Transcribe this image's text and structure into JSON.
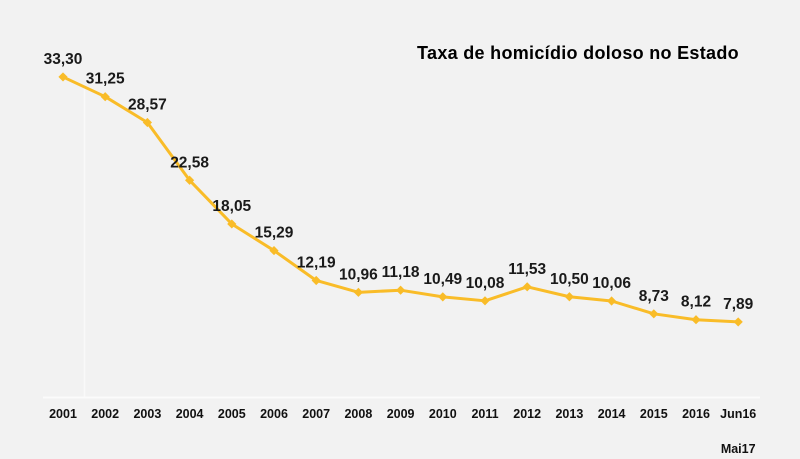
{
  "chart_data": {
    "type": "line",
    "title": "Taxa de homicídio doloso no Estado",
    "categories": [
      "2001",
      "2002",
      "2003",
      "2004",
      "2005",
      "2006",
      "2007",
      "2008",
      "2009",
      "2010",
      "2011",
      "2012",
      "2013",
      "2014",
      "2015",
      "2016",
      "Jun16"
    ],
    "last_category_line2": "Mai17",
    "values": [
      33.3,
      31.25,
      28.57,
      22.58,
      18.05,
      15.29,
      12.19,
      10.96,
      11.18,
      10.49,
      10.08,
      11.53,
      10.5,
      10.06,
      8.73,
      8.12,
      7.89
    ],
    "point_labels": [
      "33,30",
      "31,25",
      "28,57",
      "22,58",
      "18,05",
      "15,29",
      "12,19",
      "10,96",
      "11,18",
      "10,49",
      "10,08",
      "11,53",
      "10,50",
      "10,06",
      "8,73",
      "8,12",
      "7,89"
    ],
    "xlabel": "",
    "ylabel": "",
    "ylim": [
      0,
      41
    ],
    "grid": false,
    "legend": "none",
    "marker": "diamond",
    "colors": {
      "line": "#F9BC28",
      "marker": "#F9BC28",
      "background": "#F2F2F2",
      "data_label": "#1A1A1A",
      "axis_label": "#111111",
      "title": "#000000",
      "axis_line": "#FBFBFB"
    }
  }
}
